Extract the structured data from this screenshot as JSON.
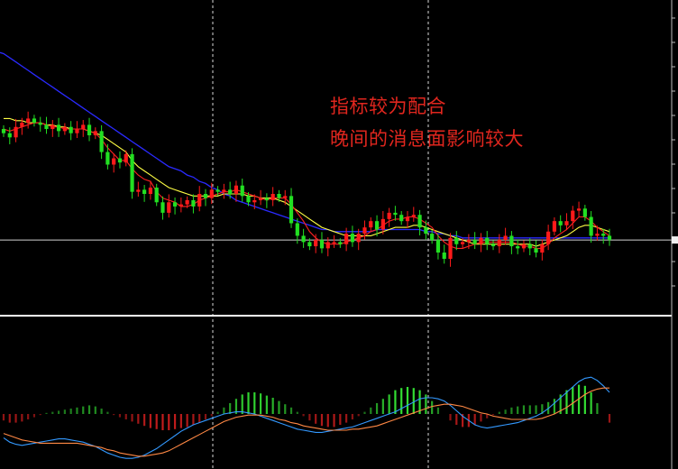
{
  "annotations": [
    "指标较为配合",
    "晚间的消息面影响较大"
  ],
  "colors": {
    "up": "#ff1a1a",
    "down": "#22e022",
    "ma_long": "#2a2aff",
    "ma_mid": "#ffff44",
    "ma_short": "#ff2222",
    "hist_pos": "#33dd33",
    "hist_neg": "#ee2222",
    "dif": "#3399ff",
    "dea": "#ff8844",
    "divider": "#ffffff",
    "ref_line": "#cfcfcf"
  },
  "chart_data": [
    {
      "type": "candlestick",
      "title": "",
      "indicators": [
        "short moving average",
        "mid moving average",
        "long moving average"
      ],
      "grid": false,
      "close": [
        100.5,
        100.3,
        100.8,
        101.0,
        101.2,
        101.0,
        100.9,
        100.7,
        100.9,
        100.6,
        100.8,
        100.5,
        100.7,
        100.9,
        100.4,
        100.6,
        99.6,
        99.0,
        99.3,
        99.1,
        99.5,
        97.7,
        97.8,
        97.6,
        97.9,
        97.2,
        96.7,
        97.2,
        97.0,
        97.1,
        97.3,
        97.0,
        97.6,
        97.4,
        97.8,
        97.7,
        97.8,
        97.6,
        98.0,
        97.5,
        97.2,
        97.3,
        97.4,
        97.3,
        97.6,
        97.4,
        97.5,
        96.2,
        95.6,
        95.3,
        95.1,
        95.4,
        95.0,
        95.3,
        95.3,
        95.2,
        95.7,
        95.3,
        95.7,
        96.0,
        96.3,
        95.9,
        96.4,
        96.7,
        96.6,
        96.3,
        96.5,
        96.6,
        96.0,
        95.7,
        95.4,
        94.8,
        94.5,
        95.5,
        95.2,
        95.3,
        95.4,
        95.2,
        95.5,
        95.2,
        95.1,
        95.4,
        95.6,
        95.1,
        95.0,
        95.2,
        95.0,
        94.8,
        95.2,
        95.8,
        96.3,
        96.1,
        96.3,
        96.8,
        96.9,
        96.5,
        95.6,
        95.7,
        95.6,
        95.4
      ],
      "ma_long": [
        104.3,
        104.1,
        103.9,
        103.7,
        103.5,
        103.3,
        103.1,
        102.9,
        102.7,
        102.5,
        102.3,
        102.1,
        101.9,
        101.7,
        101.5,
        101.3,
        101.1,
        100.9,
        100.7,
        100.5,
        100.3,
        100.1,
        99.9,
        99.7,
        99.5,
        99.3,
        99.1,
        98.9,
        98.8,
        98.7,
        98.5,
        98.4,
        98.2,
        98.1,
        97.9,
        97.8,
        97.6,
        97.5,
        97.3,
        97.2,
        97.1,
        97.0,
        96.9,
        96.8,
        96.7,
        96.6,
        96.5,
        96.4,
        96.3,
        96.2,
        96.1,
        96.0,
        95.9,
        95.9,
        95.8,
        95.8,
        95.8,
        95.8,
        95.8,
        95.8,
        95.8,
        95.9,
        95.9,
        95.9,
        95.9,
        95.9,
        95.9,
        95.9,
        95.9,
        95.8,
        95.8,
        95.7,
        95.7,
        95.6,
        95.6,
        95.5,
        95.5,
        95.5,
        95.5,
        95.5,
        95.5,
        95.5,
        95.5,
        95.5,
        95.5,
        95.5,
        95.5,
        95.5,
        95.5,
        95.5,
        95.5,
        95.5,
        95.5,
        95.5,
        95.5,
        95.5,
        95.5,
        95.5,
        95.5,
        95.5
      ],
      "ma_mid": [
        101.2,
        101.2,
        101.1,
        101.1,
        101.0,
        101.0,
        101.0,
        100.9,
        100.9,
        100.8,
        100.8,
        100.7,
        100.7,
        100.7,
        100.6,
        100.5,
        100.4,
        100.2,
        100.0,
        99.8,
        99.6,
        99.2,
        98.9,
        98.7,
        98.5,
        98.3,
        98.1,
        97.9,
        97.8,
        97.7,
        97.6,
        97.5,
        97.5,
        97.5,
        97.5,
        97.5,
        97.6,
        97.6,
        97.6,
        97.6,
        97.5,
        97.5,
        97.4,
        97.4,
        97.4,
        97.3,
        97.2,
        97.0,
        96.8,
        96.6,
        96.4,
        96.2,
        96.0,
        95.9,
        95.8,
        95.7,
        95.6,
        95.6,
        95.6,
        95.6,
        95.6,
        95.7,
        95.8,
        95.9,
        96.0,
        96.0,
        96.0,
        96.1,
        96.1,
        96.0,
        95.9,
        95.8,
        95.7,
        95.6,
        95.5,
        95.4,
        95.3,
        95.2,
        95.2,
        95.2,
        95.2,
        95.2,
        95.2,
        95.2,
        95.2,
        95.2,
        95.2,
        95.1,
        95.2,
        95.3,
        95.4,
        95.5,
        95.6,
        95.8,
        96.0,
        96.1,
        96.1,
        96.0,
        95.9,
        95.8
      ],
      "ma_short": [
        100.7,
        100.6,
        100.7,
        100.8,
        100.9,
        101.0,
        101.0,
        100.9,
        100.8,
        100.8,
        100.7,
        100.7,
        100.7,
        100.7,
        100.6,
        100.5,
        100.2,
        99.8,
        99.5,
        99.2,
        99.2,
        98.8,
        98.5,
        98.3,
        98.2,
        97.7,
        97.4,
        97.3,
        97.2,
        97.0,
        97.0,
        97.1,
        97.3,
        97.4,
        97.5,
        97.6,
        97.7,
        97.7,
        97.8,
        97.7,
        97.6,
        97.5,
        97.4,
        97.3,
        97.4,
        97.4,
        97.4,
        97.1,
        96.7,
        96.3,
        95.8,
        95.5,
        95.3,
        95.2,
        95.2,
        95.2,
        95.3,
        95.4,
        95.5,
        95.6,
        95.8,
        95.9,
        96.1,
        96.3,
        96.4,
        96.4,
        96.5,
        96.5,
        96.4,
        96.2,
        96.0,
        95.6,
        95.3,
        95.1,
        95.0,
        95.0,
        95.1,
        95.2,
        95.3,
        95.3,
        95.3,
        95.3,
        95.3,
        95.3,
        95.2,
        95.1,
        95.1,
        95.0,
        95.0,
        95.2,
        95.5,
        95.7,
        95.9,
        96.2,
        96.5,
        96.5,
        96.3,
        96.0,
        95.8,
        95.6
      ],
      "reference_line": 95.4
    },
    {
      "type": "bar",
      "title": "",
      "indicators": [
        "histogram",
        "DIF",
        "DEA"
      ],
      "histogram": [
        -6,
        -8,
        -8,
        -7,
        -5,
        -3,
        -1,
        1,
        2,
        3,
        4,
        5,
        6,
        7,
        8,
        7,
        5,
        2,
        -1,
        -3,
        -5,
        -7,
        -9,
        -11,
        -13,
        -14,
        -15,
        -15,
        -14,
        -13,
        -12,
        -10,
        -8,
        -5,
        -2,
        2,
        6,
        10,
        14,
        18,
        20,
        20,
        19,
        17,
        15,
        12,
        9,
        6,
        2,
        -2,
        -6,
        -9,
        -11,
        -12,
        -12,
        -10,
        -8,
        -5,
        -2,
        2,
        6,
        10,
        14,
        18,
        22,
        24,
        25,
        24,
        22,
        18,
        12,
        6,
        0,
        -6,
        -10,
        -12,
        -12,
        -10,
        -7,
        -4,
        -1,
        2,
        4,
        6,
        7,
        8,
        8,
        8,
        9,
        11,
        14,
        18,
        22,
        25,
        27,
        26,
        20,
        10,
        0,
        -8
      ],
      "dif": [
        -22,
        -26,
        -28,
        -29,
        -28,
        -27,
        -26,
        -25,
        -24,
        -23,
        -23,
        -24,
        -25,
        -26,
        -28,
        -30,
        -33,
        -36,
        -38,
        -40,
        -41,
        -41,
        -40,
        -38,
        -35,
        -32,
        -28,
        -24,
        -20,
        -16,
        -13,
        -10,
        -8,
        -6,
        -4,
        -2,
        0,
        1,
        2,
        2,
        1,
        0,
        -2,
        -4,
        -6,
        -8,
        -10,
        -12,
        -14,
        -15,
        -16,
        -17,
        -17,
        -16,
        -15,
        -14,
        -13,
        -12,
        -10,
        -8,
        -6,
        -4,
        -2,
        0,
        2,
        5,
        8,
        11,
        14,
        15,
        15,
        14,
        12,
        8,
        3,
        -2,
        -6,
        -10,
        -12,
        -13,
        -12,
        -11,
        -10,
        -9,
        -8,
        -6,
        -4,
        -2,
        1,
        5,
        10,
        15,
        20,
        25,
        30,
        33,
        34,
        31,
        26,
        20
      ],
      "dea": [
        -18,
        -20,
        -22,
        -24,
        -25,
        -26,
        -27,
        -27,
        -27,
        -27,
        -27,
        -27,
        -27,
        -28,
        -29,
        -30,
        -31,
        -33,
        -34,
        -36,
        -37,
        -38,
        -39,
        -39,
        -38,
        -37,
        -36,
        -34,
        -31,
        -28,
        -25,
        -22,
        -19,
        -16,
        -13,
        -10,
        -7,
        -5,
        -3,
        -2,
        -1,
        -1,
        -1,
        -2,
        -3,
        -5,
        -6,
        -8,
        -9,
        -11,
        -12,
        -13,
        -14,
        -15,
        -15,
        -15,
        -15,
        -14,
        -14,
        -13,
        -12,
        -11,
        -9,
        -7,
        -5,
        -3,
        -1,
        1,
        3,
        5,
        7,
        8,
        9,
        9,
        8,
        7,
        5,
        3,
        1,
        0,
        -2,
        -3,
        -4,
        -5,
        -5,
        -5,
        -5,
        -5,
        -4,
        -2,
        0,
        3,
        6,
        10,
        14,
        18,
        21,
        23,
        24,
        24
      ],
      "zero_line": 0
    }
  ]
}
